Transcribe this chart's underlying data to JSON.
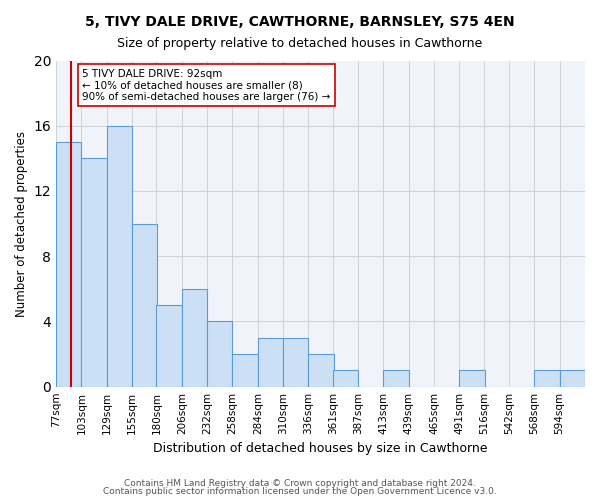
{
  "title1": "5, TIVY DALE DRIVE, CAWTHORNE, BARNSLEY, S75 4EN",
  "title2": "Size of property relative to detached houses in Cawthorne",
  "xlabel": "Distribution of detached houses by size in Cawthorne",
  "ylabel": "Number of detached properties",
  "bin_labels": [
    "77sqm",
    "103sqm",
    "129sqm",
    "155sqm",
    "180sqm",
    "206sqm",
    "232sqm",
    "258sqm",
    "284sqm",
    "310sqm",
    "336sqm",
    "361sqm",
    "387sqm",
    "413sqm",
    "439sqm",
    "465sqm",
    "491sqm",
    "516sqm",
    "542sqm",
    "568sqm",
    "594sqm"
  ],
  "bin_edges": [
    77,
    103,
    129,
    155,
    180,
    206,
    232,
    258,
    284,
    310,
    336,
    361,
    387,
    413,
    439,
    465,
    491,
    516,
    542,
    568,
    594
  ],
  "counts": [
    15,
    14,
    16,
    10,
    5,
    6,
    4,
    2,
    3,
    3,
    2,
    1,
    0,
    1,
    0,
    0,
    1,
    0,
    0,
    1,
    1
  ],
  "bar_facecolor": "#cce0f5",
  "bar_edgecolor": "#5b9bd5",
  "vline_x": 92,
  "vline_color": "#cc0000",
  "annotation_text": "5 TIVY DALE DRIVE: 92sqm\n← 10% of detached houses are smaller (8)\n90% of semi-detached houses are larger (76) →",
  "annotation_box_edgecolor": "#cc0000",
  "annotation_box_facecolor": "#ffffff",
  "ylim": [
    0,
    20
  ],
  "yticks": [
    0,
    2,
    4,
    6,
    8,
    10,
    12,
    14,
    16,
    18,
    20
  ],
  "footer1": "Contains HM Land Registry data © Crown copyright and database right 2024.",
  "footer2": "Contains public sector information licensed under the Open Government Licence v3.0.",
  "bg_color": "#f0f4fa",
  "grid_color": "#cccccc"
}
